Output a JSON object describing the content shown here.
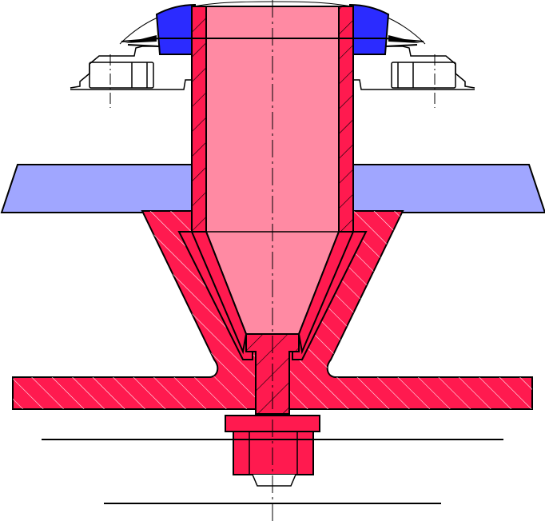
{
  "colors": {
    "background": "#ffffff",
    "outline": "#000000",
    "crimson": "#ff1a4f",
    "pink": "#ff8aa3",
    "light_blue": "#a0a6ff",
    "blue": "#2b2bff",
    "hatch": "#ffffff"
  }
}
